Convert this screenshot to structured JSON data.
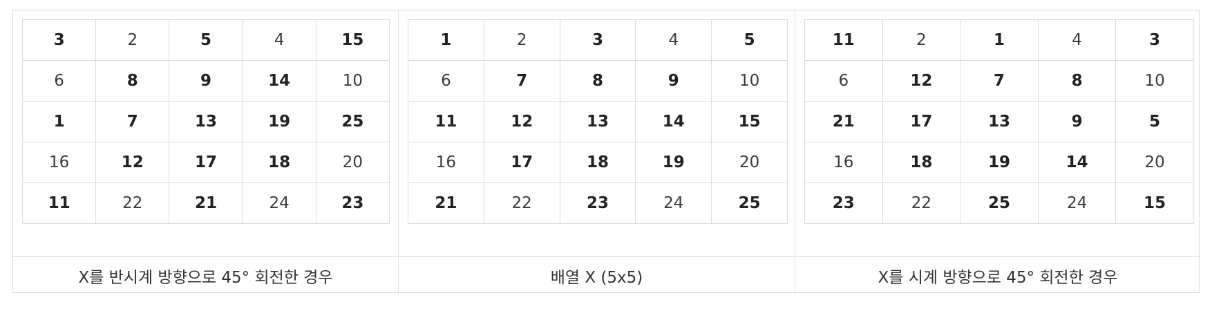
{
  "panels": [
    {
      "caption": "X를 반시계 방향으로 45° 회전한 경우",
      "rows": [
        [
          {
            "v": "3",
            "b": true
          },
          {
            "v": "2",
            "b": false
          },
          {
            "v": "5",
            "b": true
          },
          {
            "v": "4",
            "b": false
          },
          {
            "v": "15",
            "b": true
          }
        ],
        [
          {
            "v": "6",
            "b": false
          },
          {
            "v": "8",
            "b": true
          },
          {
            "v": "9",
            "b": true
          },
          {
            "v": "14",
            "b": true
          },
          {
            "v": "10",
            "b": false
          }
        ],
        [
          {
            "v": "1",
            "b": true
          },
          {
            "v": "7",
            "b": true
          },
          {
            "v": "13",
            "b": true
          },
          {
            "v": "19",
            "b": true
          },
          {
            "v": "25",
            "b": true
          }
        ],
        [
          {
            "v": "16",
            "b": false
          },
          {
            "v": "12",
            "b": true
          },
          {
            "v": "17",
            "b": true
          },
          {
            "v": "18",
            "b": true
          },
          {
            "v": "20",
            "b": false
          }
        ],
        [
          {
            "v": "11",
            "b": true
          },
          {
            "v": "22",
            "b": false
          },
          {
            "v": "21",
            "b": true
          },
          {
            "v": "24",
            "b": false
          },
          {
            "v": "23",
            "b": true
          }
        ]
      ]
    },
    {
      "caption": "배열 X (5x5)",
      "rows": [
        [
          {
            "v": "1",
            "b": true
          },
          {
            "v": "2",
            "b": false
          },
          {
            "v": "3",
            "b": true
          },
          {
            "v": "4",
            "b": false
          },
          {
            "v": "5",
            "b": true
          }
        ],
        [
          {
            "v": "6",
            "b": false
          },
          {
            "v": "7",
            "b": true
          },
          {
            "v": "8",
            "b": true
          },
          {
            "v": "9",
            "b": true
          },
          {
            "v": "10",
            "b": false
          }
        ],
        [
          {
            "v": "11",
            "b": true
          },
          {
            "v": "12",
            "b": true
          },
          {
            "v": "13",
            "b": true
          },
          {
            "v": "14",
            "b": true
          },
          {
            "v": "15",
            "b": true
          }
        ],
        [
          {
            "v": "16",
            "b": false
          },
          {
            "v": "17",
            "b": true
          },
          {
            "v": "18",
            "b": true
          },
          {
            "v": "19",
            "b": true
          },
          {
            "v": "20",
            "b": false
          }
        ],
        [
          {
            "v": "21",
            "b": true
          },
          {
            "v": "22",
            "b": false
          },
          {
            "v": "23",
            "b": true
          },
          {
            "v": "24",
            "b": false
          },
          {
            "v": "25",
            "b": true
          }
        ]
      ]
    },
    {
      "caption": "X를 시계 방향으로 45° 회전한 경우",
      "rows": [
        [
          {
            "v": "11",
            "b": true
          },
          {
            "v": "2",
            "b": false
          },
          {
            "v": "1",
            "b": true
          },
          {
            "v": "4",
            "b": false
          },
          {
            "v": "3",
            "b": true
          }
        ],
        [
          {
            "v": "6",
            "b": false
          },
          {
            "v": "12",
            "b": true
          },
          {
            "v": "7",
            "b": true
          },
          {
            "v": "8",
            "b": true
          },
          {
            "v": "10",
            "b": false
          }
        ],
        [
          {
            "v": "21",
            "b": true
          },
          {
            "v": "17",
            "b": true
          },
          {
            "v": "13",
            "b": true
          },
          {
            "v": "9",
            "b": true
          },
          {
            "v": "5",
            "b": true
          }
        ],
        [
          {
            "v": "16",
            "b": false
          },
          {
            "v": "18",
            "b": true
          },
          {
            "v": "19",
            "b": true
          },
          {
            "v": "14",
            "b": true
          },
          {
            "v": "20",
            "b": false
          }
        ],
        [
          {
            "v": "23",
            "b": true
          },
          {
            "v": "22",
            "b": false
          },
          {
            "v": "25",
            "b": true
          },
          {
            "v": "24",
            "b": false
          },
          {
            "v": "15",
            "b": true
          }
        ]
      ]
    }
  ]
}
